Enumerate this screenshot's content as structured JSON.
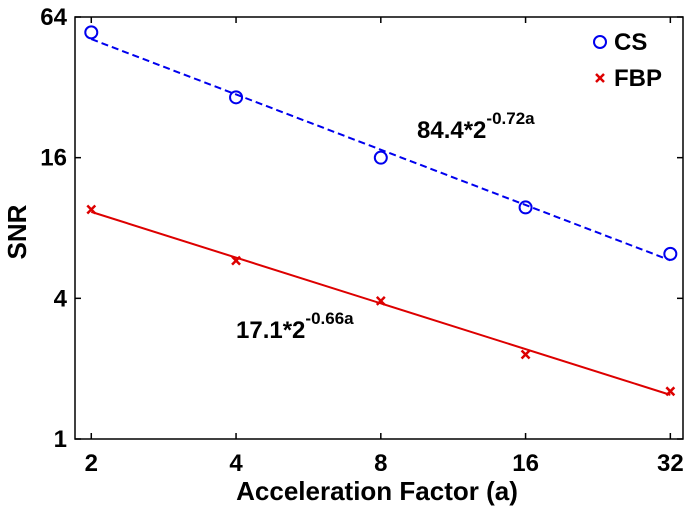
{
  "chart_data": {
    "type": "scatter",
    "xlabel": "Acceleration Factor (a)",
    "ylabel": "SNR",
    "x_scale": "log2",
    "y_scale": "log2",
    "x_ticks": [
      "2",
      "4",
      "8",
      "16",
      "32"
    ],
    "y_ticks": [
      "1",
      "4",
      "16",
      "64"
    ],
    "xlim": [
      1.85,
      34
    ],
    "ylim": [
      1,
      64
    ],
    "legend_position": "top-right",
    "series": [
      {
        "name": "CS",
        "color": "#0000ee",
        "marker": "circle",
        "x": [
          2,
          4,
          8,
          16,
          32
        ],
        "y": [
          55,
          29,
          16,
          9.8,
          6.2
        ],
        "fit_line_style": "dashed",
        "fit": {
          "label_base": "84.4*2",
          "label_exp": "-0.72a"
        }
      },
      {
        "name": "FBP",
        "color": "#dd0000",
        "marker": "x",
        "x": [
          2,
          4,
          8,
          16,
          32
        ],
        "y": [
          9.6,
          5.8,
          3.9,
          2.3,
          1.6
        ],
        "fit_line_style": "solid",
        "fit": {
          "label_base": "17.1*2",
          "label_exp": "-0.66a"
        }
      }
    ]
  }
}
